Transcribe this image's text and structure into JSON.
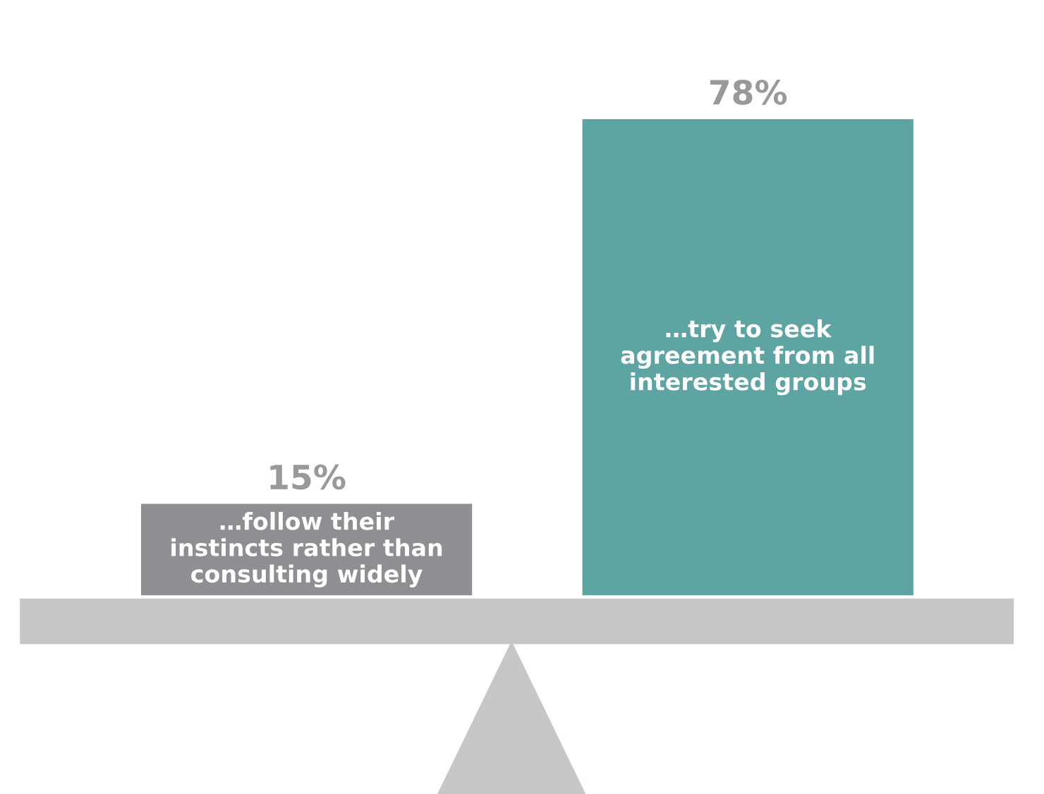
{
  "chart_data": {
    "type": "bar",
    "categories": [
      "…follow their\ninstincts rather than\nconsulting widely",
      "…try to seek\nagreement from all\ninterested groups"
    ],
    "values": [
      15,
      78
    ],
    "value_labels": [
      "15%",
      "78%"
    ],
    "colors": [
      "#8e8f93",
      "#5ea4a3"
    ]
  }
}
